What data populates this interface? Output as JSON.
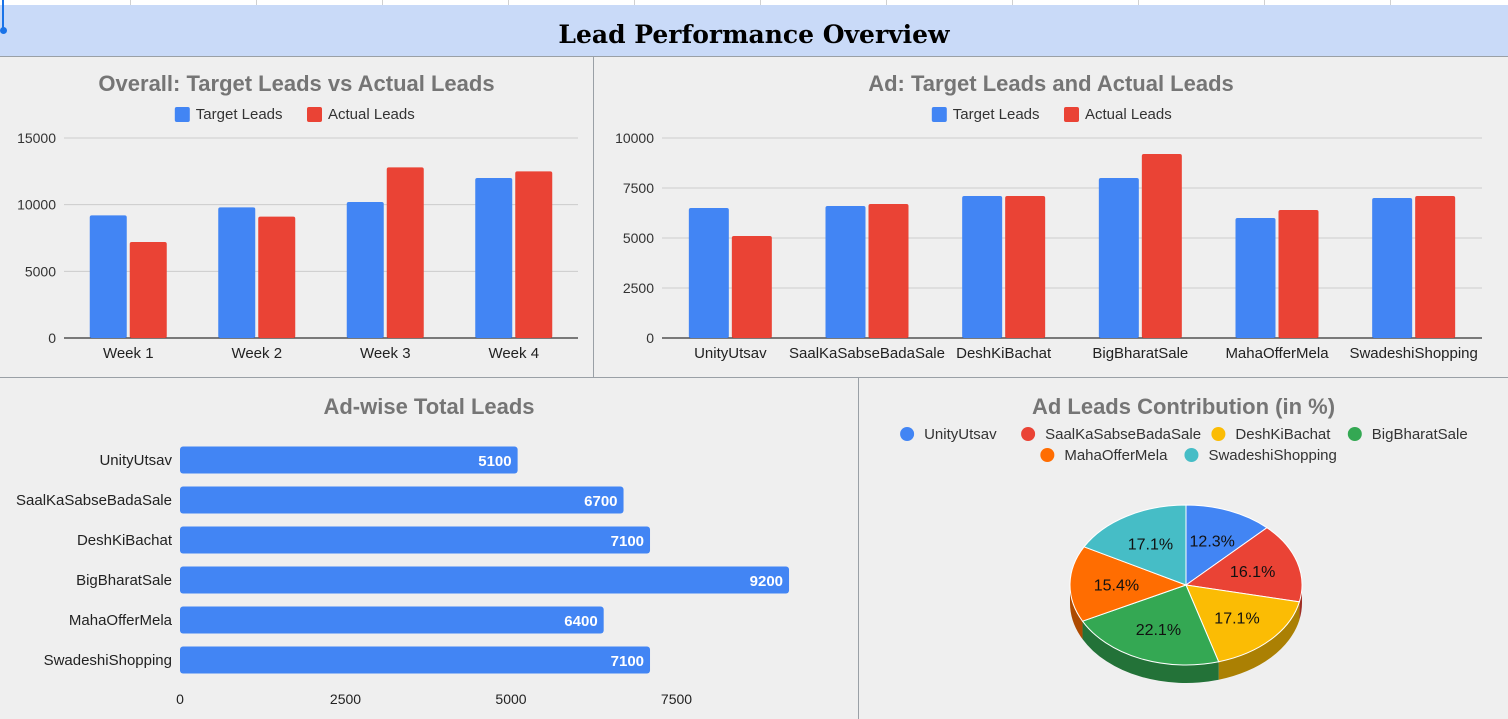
{
  "header": {
    "title": "Lead Performance Overview"
  },
  "colors": {
    "target": "#4285f4",
    "actual": "#ea4335",
    "bar": "#4285f4",
    "pie": [
      "#4285f4",
      "#ea4335",
      "#fbbc04",
      "#34a853",
      "#ff6d01",
      "#46bdc6"
    ]
  },
  "chart_data": [
    {
      "type": "bar",
      "title": "Overall: Target Leads vs Actual Leads",
      "categories": [
        "Week 1",
        "Week 2",
        "Week 3",
        "Week 4"
      ],
      "series": [
        {
          "name": "Target Leads",
          "values": [
            9200,
            9800,
            10200,
            12000
          ]
        },
        {
          "name": "Actual Leads",
          "values": [
            7200,
            9100,
            12800,
            12500
          ]
        }
      ],
      "ylim": [
        0,
        15000
      ],
      "yticks": [
        "0",
        "5000",
        "10000",
        "15000"
      ],
      "legend": "top",
      "grid": true
    },
    {
      "type": "bar",
      "title": "Ad: Target Leads and Actual Leads",
      "categories": [
        "UnityUtsav",
        "SaalKaSabseBadaSale",
        "DeshKiBachat",
        "BigBharatSale",
        "MahaOfferMela",
        "SwadeshiShopping"
      ],
      "series": [
        {
          "name": "Target Leads",
          "values": [
            6500,
            6600,
            7100,
            8000,
            6000,
            7000
          ]
        },
        {
          "name": "Actual Leads",
          "values": [
            5100,
            6700,
            7100,
            9200,
            6400,
            7100
          ]
        }
      ],
      "ylim": [
        0,
        10000
      ],
      "yticks": [
        "0",
        "2500",
        "5000",
        "7500",
        "10000"
      ],
      "legend": "top",
      "grid": true
    },
    {
      "type": "bar",
      "orientation": "horizontal",
      "title": "Ad-wise Total Leads",
      "categories": [
        "UnityUtsav",
        "SaalKaSabseBadaSale",
        "DeshKiBachat",
        "BigBharatSale",
        "MahaOfferMela",
        "SwadeshiShopping"
      ],
      "values": [
        5100,
        6700,
        7100,
        9200,
        6400,
        7100
      ],
      "value_labels": [
        "5100",
        "6700",
        "7100",
        "9200",
        "6400",
        "7100"
      ],
      "xlim": [
        0,
        10000
      ],
      "xticks": [
        "0",
        "2500",
        "5000",
        "7500"
      ],
      "grid": false
    },
    {
      "type": "pie",
      "style": "3d",
      "title": "Ad Leads Contribution (in %)",
      "labels": [
        "UnityUtsav",
        "SaalKaSabseBadaSale",
        "DeshKiBachat",
        "BigBharatSale",
        "MahaOfferMela",
        "SwadeshiShopping"
      ],
      "values": [
        12.3,
        16.1,
        17.1,
        22.1,
        15.4,
        17.1
      ],
      "value_labels": [
        "12.3%",
        "16.1%",
        "17.1%",
        "22.1%",
        "15.4%",
        "17.1%"
      ],
      "legend": "top"
    }
  ]
}
